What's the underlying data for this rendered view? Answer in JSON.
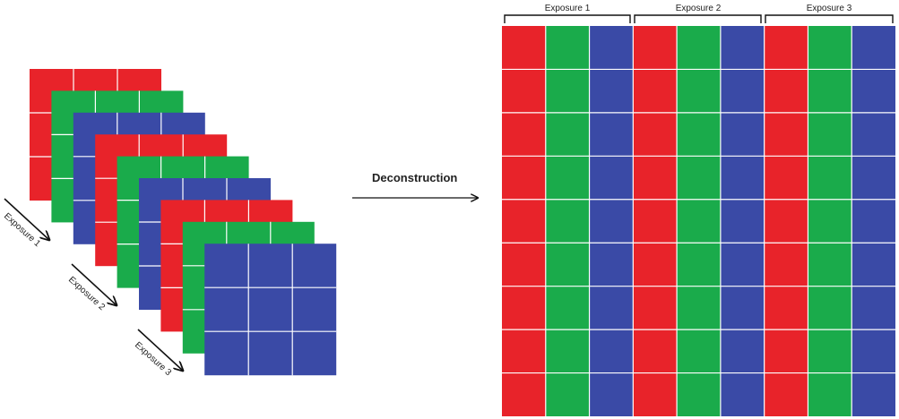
{
  "left_labels": [
    "Exposure 1",
    "Exposure 2",
    "Exposure 3"
  ],
  "middle": {
    "label": "Deconstruction"
  },
  "right_labels": [
    "Exposure 1",
    "Exposure 2",
    "Exposure 3"
  ],
  "colors": {
    "red": "#e8232a",
    "green": "#1aab4b",
    "blue": "#3a4aa6",
    "grid": "#ffffff"
  },
  "stack_order": [
    "red",
    "green",
    "blue",
    "red",
    "green",
    "blue",
    "red",
    "green",
    "blue"
  ],
  "grid_size": {
    "rows": 3,
    "cols": 3
  },
  "deconstructed": {
    "rows": 9,
    "column_colors": [
      "red",
      "green",
      "blue",
      "red",
      "green",
      "blue",
      "red",
      "green",
      "blue"
    ]
  }
}
